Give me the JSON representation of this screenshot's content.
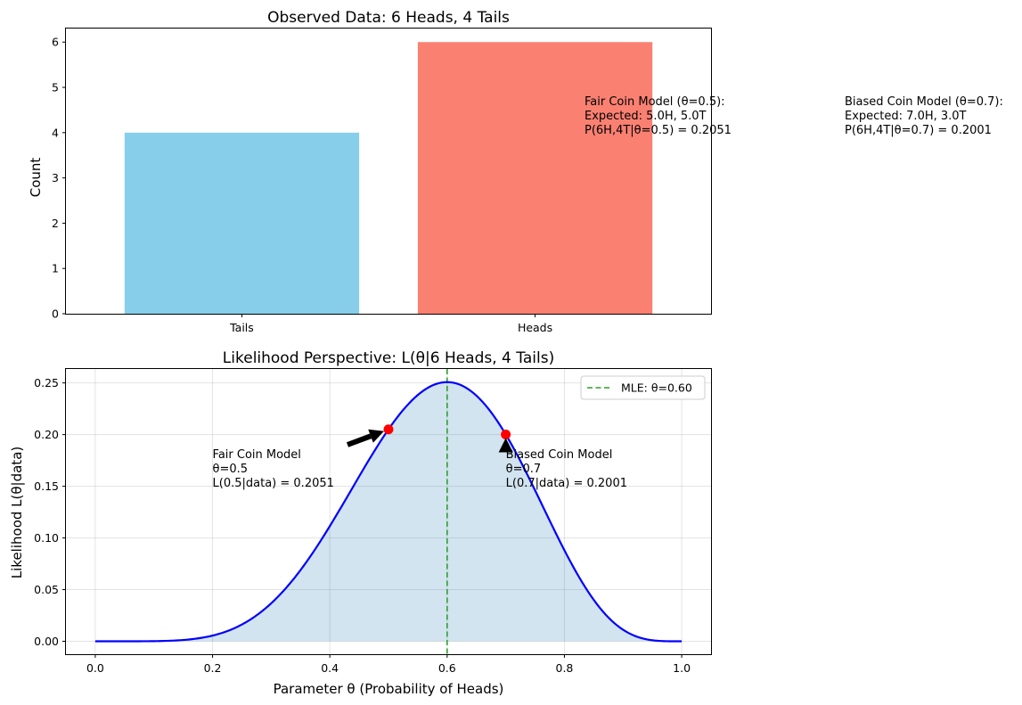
{
  "chart_data": [
    {
      "type": "bar",
      "title": "Observed Data: 6 Heads, 4 Tails",
      "xlabel": "",
      "ylabel": "Count",
      "categories": [
        "Tails",
        "Heads"
      ],
      "values": [
        4,
        6
      ],
      "colors": [
        "#87ceeb",
        "#fa8072"
      ],
      "ylim": [
        0,
        6.3
      ],
      "yticks": [
        0,
        1,
        2,
        3,
        4,
        5,
        6
      ],
      "grid": false,
      "annotations": [
        {
          "lines": [
            "Fair Coin Model (θ=0.5):",
            "Expected: 5.0H, 5.0T",
            "P(6H,4T|θ=0.5) = 0.2051"
          ]
        },
        {
          "lines": [
            "Biased Coin Model (θ=0.7):",
            "Expected: 7.0H, 3.0T",
            "P(6H,4T|θ=0.7) = 0.2001"
          ]
        }
      ]
    },
    {
      "type": "line",
      "title": "Likelihood Perspective: L(θ|6 Heads, 4 Tails)",
      "xlabel": "Parameter θ (Probability of Heads)",
      "ylabel": "Likelihood L(θ|data)",
      "series": [
        {
          "function": "binomial_likelihood",
          "heads": 6,
          "tails": 4,
          "color": "#0000ff",
          "fill": "#1f77b4"
        }
      ],
      "xlim": [
        -0.05,
        1.05
      ],
      "ylim": [
        -0.0125,
        0.2635
      ],
      "xticks": [
        0.0,
        0.2,
        0.4,
        0.6,
        0.8,
        1.0
      ],
      "yticks": [
        0.0,
        0.05,
        0.1,
        0.15,
        0.2,
        0.25
      ],
      "grid": true,
      "mle": {
        "theta": 0.6,
        "color": "#2ca02c"
      },
      "legend": {
        "position": "top-right",
        "entries": [
          "MLE: θ=0.60"
        ]
      },
      "points": [
        {
          "theta": 0.5,
          "likelihood": 0.2051,
          "color": "#ff0000"
        },
        {
          "theta": 0.7,
          "likelihood": 0.2001,
          "color": "#ff0000"
        }
      ],
      "annotations": [
        {
          "lines": [
            "Fair Coin Model",
            "θ=0.5",
            "L(0.5|data) = 0.2051"
          ],
          "x": 0.2,
          "y": 0.15,
          "arrow_to": [
            0.5,
            0.2051
          ]
        },
        {
          "lines": [
            "Biased Coin Model",
            "θ=0.7",
            "L(0.7|data) = 0.2001"
          ],
          "x": 0.7,
          "y": 0.15,
          "arrow_to": [
            0.7,
            0.2001
          ]
        }
      ]
    }
  ]
}
